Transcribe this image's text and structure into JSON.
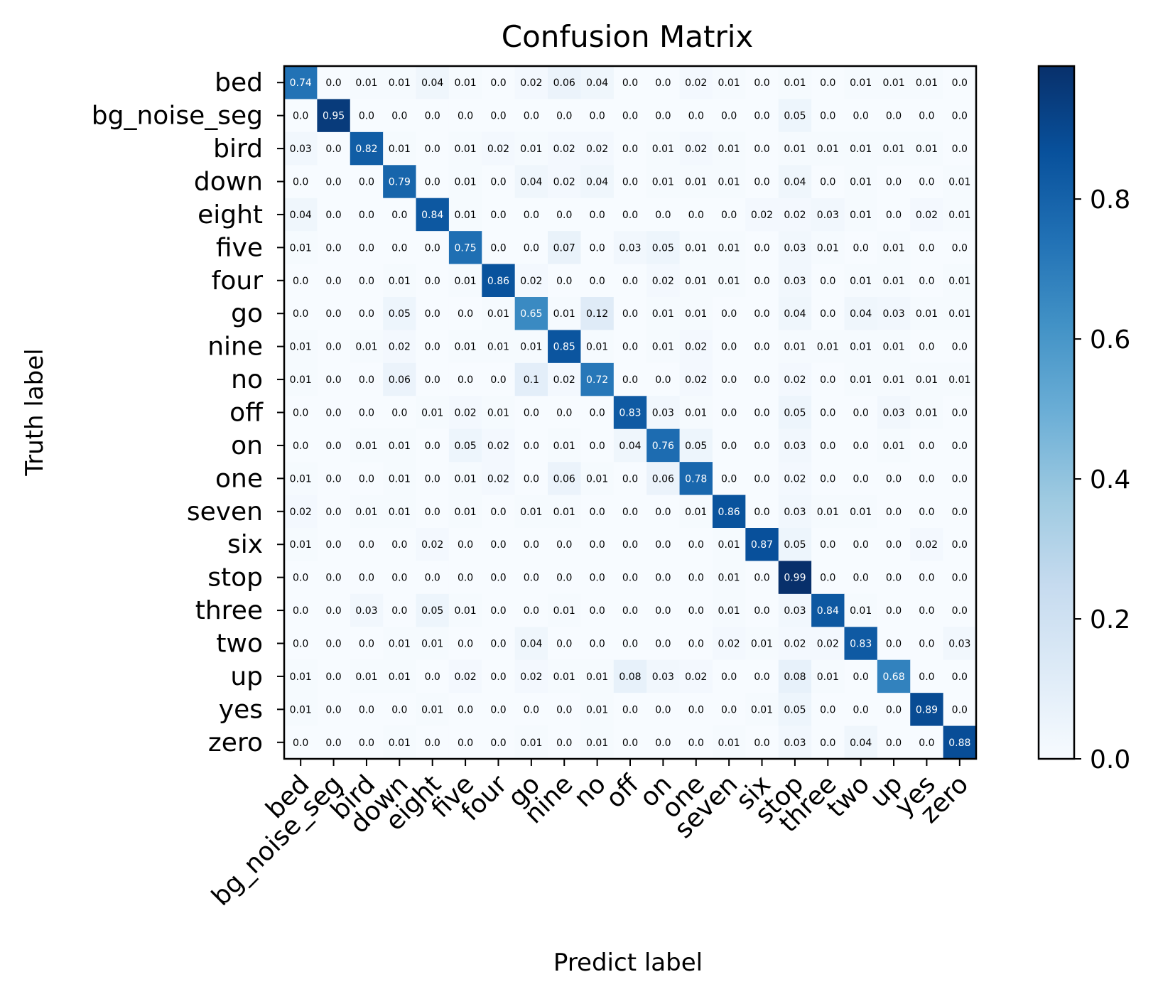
{
  "chart_data": {
    "type": "heatmap",
    "title": "Confusion Matrix",
    "xlabel": "Predict label",
    "ylabel": "Truth label",
    "labels": [
      "bed",
      "bg_noise_seg",
      "bird",
      "down",
      "eight",
      "five",
      "four",
      "go",
      "nine",
      "no",
      "off",
      "on",
      "one",
      "seven",
      "six",
      "stop",
      "three",
      "two",
      "up",
      "yes",
      "zero"
    ],
    "matrix": [
      [
        "0.74",
        "0.0",
        "0.01",
        "0.01",
        "0.04",
        "0.01",
        "0.0",
        "0.02",
        "0.06",
        "0.04",
        "0.0",
        "0.0",
        "0.02",
        "0.01",
        "0.0",
        "0.01",
        "0.0",
        "0.01",
        "0.01",
        "0.01",
        "0.0"
      ],
      [
        "0.0",
        "0.95",
        "0.0",
        "0.0",
        "0.0",
        "0.0",
        "0.0",
        "0.0",
        "0.0",
        "0.0",
        "0.0",
        "0.0",
        "0.0",
        "0.0",
        "0.0",
        "0.05",
        "0.0",
        "0.0",
        "0.0",
        "0.0",
        "0.0"
      ],
      [
        "0.03",
        "0.0",
        "0.82",
        "0.01",
        "0.0",
        "0.01",
        "0.02",
        "0.01",
        "0.02",
        "0.02",
        "0.0",
        "0.01",
        "0.02",
        "0.01",
        "0.0",
        "0.01",
        "0.01",
        "0.01",
        "0.01",
        "0.01",
        "0.0"
      ],
      [
        "0.0",
        "0.0",
        "0.0",
        "0.79",
        "0.0",
        "0.01",
        "0.0",
        "0.04",
        "0.02",
        "0.04",
        "0.0",
        "0.01",
        "0.01",
        "0.01",
        "0.0",
        "0.04",
        "0.0",
        "0.01",
        "0.0",
        "0.0",
        "0.01"
      ],
      [
        "0.04",
        "0.0",
        "0.0",
        "0.0",
        "0.84",
        "0.01",
        "0.0",
        "0.0",
        "0.0",
        "0.0",
        "0.0",
        "0.0",
        "0.0",
        "0.0",
        "0.02",
        "0.02",
        "0.03",
        "0.01",
        "0.0",
        "0.02",
        "0.01"
      ],
      [
        "0.01",
        "0.0",
        "0.0",
        "0.0",
        "0.0",
        "0.75",
        "0.0",
        "0.0",
        "0.07",
        "0.0",
        "0.03",
        "0.05",
        "0.01",
        "0.01",
        "0.0",
        "0.03",
        "0.01",
        "0.0",
        "0.01",
        "0.0",
        "0.0"
      ],
      [
        "0.0",
        "0.0",
        "0.0",
        "0.01",
        "0.0",
        "0.01",
        "0.86",
        "0.02",
        "0.0",
        "0.0",
        "0.0",
        "0.02",
        "0.01",
        "0.01",
        "0.0",
        "0.03",
        "0.0",
        "0.01",
        "0.01",
        "0.0",
        "0.01"
      ],
      [
        "0.0",
        "0.0",
        "0.0",
        "0.05",
        "0.0",
        "0.0",
        "0.01",
        "0.65",
        "0.01",
        "0.12",
        "0.0",
        "0.01",
        "0.01",
        "0.0",
        "0.0",
        "0.04",
        "0.0",
        "0.04",
        "0.03",
        "0.01",
        "0.01"
      ],
      [
        "0.01",
        "0.0",
        "0.01",
        "0.02",
        "0.0",
        "0.01",
        "0.01",
        "0.01",
        "0.85",
        "0.01",
        "0.0",
        "0.01",
        "0.02",
        "0.0",
        "0.0",
        "0.01",
        "0.01",
        "0.01",
        "0.01",
        "0.0",
        "0.0"
      ],
      [
        "0.01",
        "0.0",
        "0.0",
        "0.06",
        "0.0",
        "0.0",
        "0.0",
        "0.1",
        "0.02",
        "0.72",
        "0.0",
        "0.0",
        "0.02",
        "0.0",
        "0.0",
        "0.02",
        "0.0",
        "0.01",
        "0.01",
        "0.01",
        "0.01"
      ],
      [
        "0.0",
        "0.0",
        "0.0",
        "0.0",
        "0.01",
        "0.02",
        "0.01",
        "0.0",
        "0.0",
        "0.0",
        "0.83",
        "0.03",
        "0.01",
        "0.0",
        "0.0",
        "0.05",
        "0.0",
        "0.0",
        "0.03",
        "0.01",
        "0.0"
      ],
      [
        "0.0",
        "0.0",
        "0.01",
        "0.01",
        "0.0",
        "0.05",
        "0.02",
        "0.0",
        "0.01",
        "0.0",
        "0.04",
        "0.76",
        "0.05",
        "0.0",
        "0.0",
        "0.03",
        "0.0",
        "0.0",
        "0.01",
        "0.0",
        "0.0"
      ],
      [
        "0.01",
        "0.0",
        "0.0",
        "0.01",
        "0.0",
        "0.01",
        "0.02",
        "0.0",
        "0.06",
        "0.01",
        "0.0",
        "0.06",
        "0.78",
        "0.0",
        "0.0",
        "0.02",
        "0.0",
        "0.0",
        "0.0",
        "0.0",
        "0.0"
      ],
      [
        "0.02",
        "0.0",
        "0.01",
        "0.01",
        "0.0",
        "0.01",
        "0.0",
        "0.01",
        "0.01",
        "0.0",
        "0.0",
        "0.0",
        "0.01",
        "0.86",
        "0.0",
        "0.03",
        "0.01",
        "0.01",
        "0.0",
        "0.0",
        "0.0"
      ],
      [
        "0.01",
        "0.0",
        "0.0",
        "0.0",
        "0.02",
        "0.0",
        "0.0",
        "0.0",
        "0.0",
        "0.0",
        "0.0",
        "0.0",
        "0.0",
        "0.01",
        "0.87",
        "0.05",
        "0.0",
        "0.0",
        "0.0",
        "0.02",
        "0.0"
      ],
      [
        "0.0",
        "0.0",
        "0.0",
        "0.0",
        "0.0",
        "0.0",
        "0.0",
        "0.0",
        "0.0",
        "0.0",
        "0.0",
        "0.0",
        "0.0",
        "0.01",
        "0.0",
        "0.99",
        "0.0",
        "0.0",
        "0.0",
        "0.0",
        "0.0"
      ],
      [
        "0.0",
        "0.0",
        "0.03",
        "0.0",
        "0.05",
        "0.01",
        "0.0",
        "0.0",
        "0.01",
        "0.0",
        "0.0",
        "0.0",
        "0.0",
        "0.01",
        "0.0",
        "0.03",
        "0.84",
        "0.01",
        "0.0",
        "0.0",
        "0.0"
      ],
      [
        "0.0",
        "0.0",
        "0.0",
        "0.01",
        "0.01",
        "0.0",
        "0.0",
        "0.04",
        "0.0",
        "0.0",
        "0.0",
        "0.0",
        "0.0",
        "0.02",
        "0.01",
        "0.02",
        "0.02",
        "0.83",
        "0.0",
        "0.0",
        "0.03"
      ],
      [
        "0.01",
        "0.0",
        "0.01",
        "0.01",
        "0.0",
        "0.02",
        "0.0",
        "0.02",
        "0.01",
        "0.01",
        "0.08",
        "0.03",
        "0.02",
        "0.0",
        "0.0",
        "0.08",
        "0.01",
        "0.0",
        "0.68",
        "0.0",
        "0.0"
      ],
      [
        "0.01",
        "0.0",
        "0.0",
        "0.0",
        "0.01",
        "0.0",
        "0.0",
        "0.0",
        "0.0",
        "0.01",
        "0.0",
        "0.0",
        "0.0",
        "0.0",
        "0.01",
        "0.05",
        "0.0",
        "0.0",
        "0.0",
        "0.89",
        "0.0"
      ],
      [
        "0.0",
        "0.0",
        "0.0",
        "0.01",
        "0.0",
        "0.0",
        "0.0",
        "0.01",
        "0.0",
        "0.01",
        "0.0",
        "0.0",
        "0.0",
        "0.01",
        "0.0",
        "0.03",
        "0.0",
        "0.04",
        "0.0",
        "0.0",
        "0.88"
      ]
    ],
    "colormap": "Blues",
    "color_range": [
      0.0,
      0.99
    ],
    "colorbar_ticks": [
      "0.0",
      "0.2",
      "0.4",
      "0.6",
      "0.8"
    ],
    "grid": false
  }
}
